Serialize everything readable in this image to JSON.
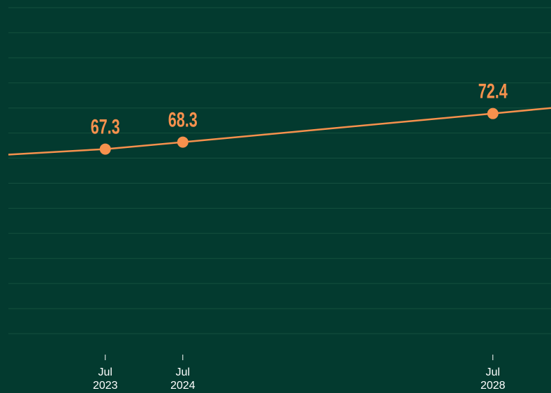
{
  "chart_data": {
    "type": "line",
    "x": [
      "2022-04",
      "2023-07",
      "2024-07",
      "2028-07",
      "2029-04"
    ],
    "series": [
      {
        "color": "#f7914d",
        "values": [
          66.5,
          67.3,
          68.3,
          72.4,
          73.2
        ]
      }
    ],
    "xlim": [
      "2022-04",
      "2029-04"
    ],
    "xticks": [
      {
        "value": "2023-07",
        "label": "Jul\n2023"
      },
      {
        "value": "2024-07",
        "label": "Jul\n2024"
      },
      {
        "value": "2028-07",
        "label": "Jul\n2028"
      }
    ],
    "ylim": [
      40.8,
      87.6
    ],
    "yticks": [
      40.8,
      44.4,
      48,
      51.6,
      55.2,
      58.8,
      62.4,
      66,
      69.6,
      73.2,
      76.8,
      80.4,
      84,
      87.6
    ],
    "grid": true
  }
}
